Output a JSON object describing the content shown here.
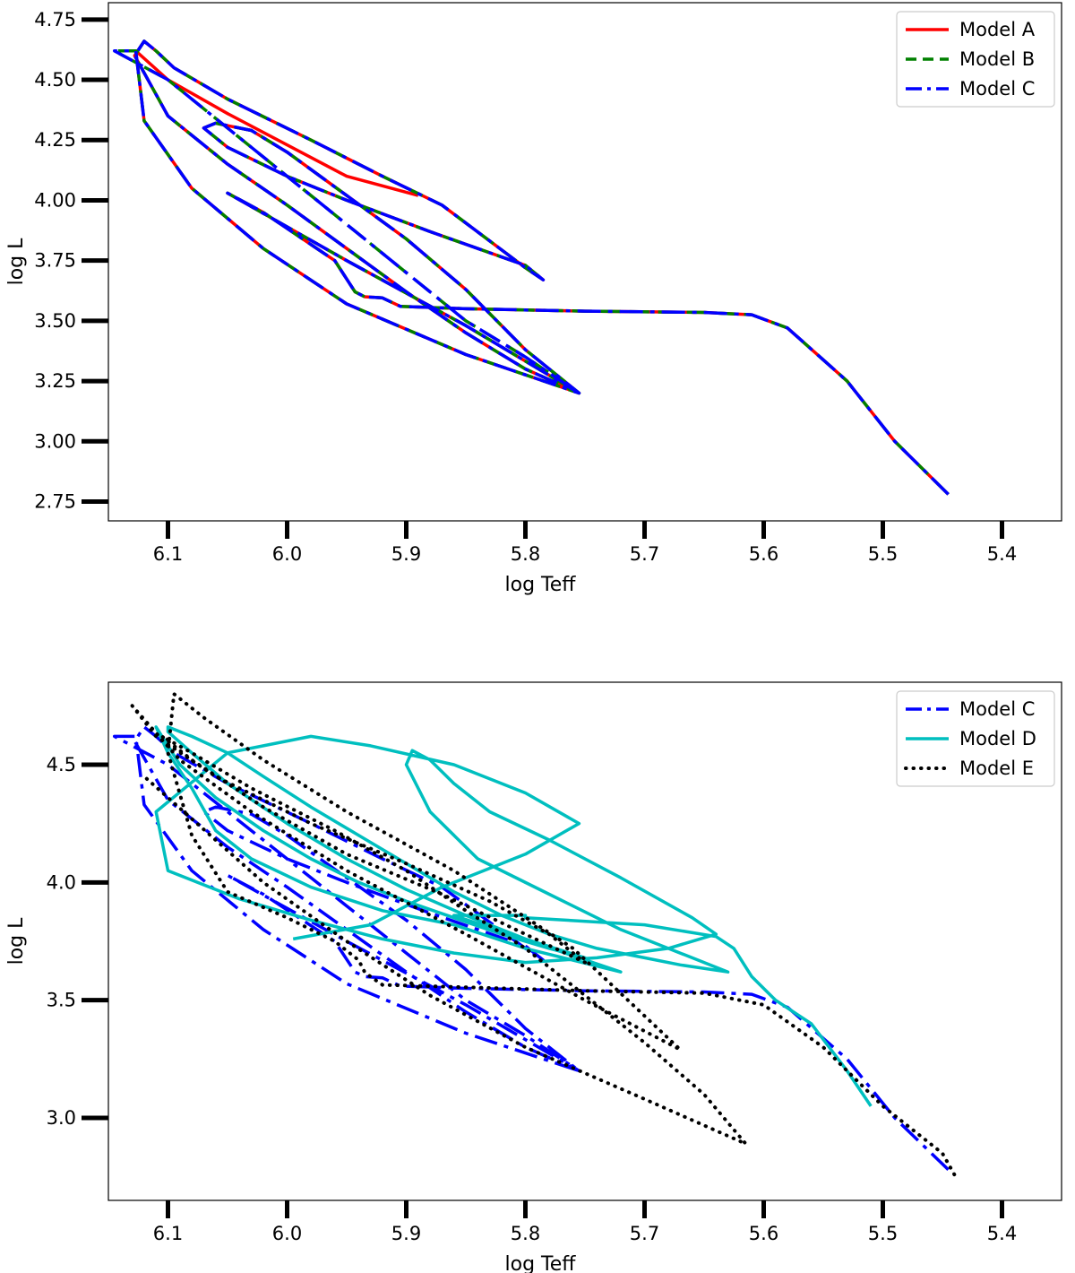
{
  "colors": {
    "Model A": "#ff0000",
    "Model B": "#008000",
    "Model C": "#0000ff",
    "Model D": "#00bfbf",
    "Model E": "#000000",
    "axes": "#000000",
    "legend_border": "#cccccc"
  },
  "chart_data": [
    {
      "type": "line",
      "title": "",
      "xlabel": "log Teff",
      "ylabel": "log L",
      "xlim": [
        6.15,
        5.35
      ],
      "ylim": [
        2.67,
        4.82
      ],
      "x_inverted": true,
      "grid": false,
      "legend_position": "top-right",
      "xticks": [
        6.1,
        6.0,
        5.9,
        5.8,
        5.7,
        5.6,
        5.5,
        5.4
      ],
      "xtick_labels": [
        "6.1",
        "6.0",
        "5.9",
        "5.8",
        "5.7",
        "5.6",
        "5.5",
        "5.4"
      ],
      "yticks": [
        2.75,
        3.0,
        3.25,
        3.5,
        3.75,
        4.0,
        4.25,
        4.5,
        4.75
      ],
      "ytick_labels": [
        "2.75",
        "3.00",
        "3.25",
        "3.50",
        "3.75",
        "4.00",
        "4.25",
        "4.50",
        "4.75"
      ],
      "legend": [
        "Model A",
        "Model B",
        "Model C"
      ],
      "series": [
        {
          "name": "Model A",
          "style": "solid",
          "x": [
            5.445,
            5.49,
            5.53,
            5.58,
            5.61,
            5.65,
            5.75,
            5.85,
            5.905,
            5.92,
            5.935,
            5.943,
            5.96,
            6.02,
            6.05,
            5.95,
            5.85,
            5.755,
            5.8,
            5.85,
            5.9,
            5.95,
            6.0,
            6.05,
            6.1,
            6.128,
            6.12,
            6.11,
            6.095,
            6.05,
            5.98,
            5.92,
            5.87,
            5.8,
            5.785,
            5.8,
            5.88,
            5.95,
            6.0,
            6.05,
            6.07,
            6.06,
            6.03,
            6.0,
            5.95,
            5.9,
            5.85,
            5.8,
            5.755,
            5.85,
            5.95,
            6.02,
            6.08,
            6.12,
            6.127,
            6.1,
            6.05,
            5.95,
            5.89
          ],
          "y": [
            2.78,
            3.0,
            3.25,
            3.47,
            3.525,
            3.535,
            3.54,
            3.55,
            3.56,
            3.595,
            3.6,
            3.62,
            3.75,
            3.95,
            4.03,
            3.75,
            3.48,
            3.2,
            3.3,
            3.45,
            3.62,
            3.8,
            3.98,
            4.15,
            4.35,
            4.6,
            4.66,
            4.62,
            4.55,
            4.42,
            4.25,
            4.1,
            3.98,
            3.72,
            3.67,
            3.73,
            3.87,
            4.0,
            4.1,
            4.22,
            4.3,
            4.32,
            4.29,
            4.2,
            4.02,
            3.84,
            3.63,
            3.38,
            3.2,
            3.36,
            3.57,
            3.8,
            4.05,
            4.33,
            4.62,
            4.5,
            4.36,
            4.1,
            4.02
          ]
        },
        {
          "name": "Model B",
          "style": "dashed",
          "x": [
            5.445,
            5.49,
            5.53,
            5.58,
            5.61,
            5.65,
            5.75,
            5.85,
            5.905,
            5.92,
            5.935,
            5.943,
            5.96,
            6.02,
            6.05,
            5.95,
            5.85,
            5.755,
            5.8,
            5.85,
            5.9,
            5.95,
            6.0,
            6.05,
            6.1,
            6.128,
            6.12,
            6.11,
            6.095,
            6.05,
            5.98,
            5.92,
            5.87,
            5.8,
            5.785,
            5.8,
            5.88,
            5.95,
            6.0,
            6.05,
            6.07,
            6.06,
            6.03,
            6.0,
            5.95,
            5.9,
            5.85,
            5.8,
            5.755,
            5.85,
            5.95,
            6.02,
            6.08,
            6.12,
            6.127,
            6.145,
            6.1,
            6.05,
            6.0,
            5.95,
            5.9,
            5.85,
            5.8,
            5.755
          ],
          "y": [
            2.78,
            3.0,
            3.25,
            3.47,
            3.525,
            3.535,
            3.54,
            3.55,
            3.56,
            3.595,
            3.6,
            3.62,
            3.75,
            3.95,
            4.03,
            3.75,
            3.48,
            3.2,
            3.3,
            3.45,
            3.62,
            3.8,
            3.98,
            4.15,
            4.35,
            4.6,
            4.66,
            4.62,
            4.55,
            4.42,
            4.25,
            4.1,
            3.98,
            3.72,
            3.67,
            3.73,
            3.87,
            4.0,
            4.1,
            4.22,
            4.3,
            4.32,
            4.29,
            4.2,
            4.02,
            3.84,
            3.63,
            3.38,
            3.2,
            3.36,
            3.57,
            3.8,
            4.05,
            4.33,
            4.62,
            4.62,
            4.5,
            4.3,
            4.1,
            3.9,
            3.7,
            3.5,
            3.35,
            3.2
          ]
        },
        {
          "name": "Model C",
          "style": "dashdot",
          "x": [
            5.445,
            5.49,
            5.53,
            5.58,
            5.61,
            5.65,
            5.75,
            5.85,
            5.905,
            5.92,
            5.935,
            5.943,
            5.96,
            6.02,
            6.05,
            5.95,
            5.85,
            5.755,
            5.8,
            5.85,
            5.9,
            5.95,
            6.0,
            6.05,
            6.1,
            6.128,
            6.12,
            6.11,
            6.095,
            6.05,
            5.98,
            5.92,
            5.87,
            5.8,
            5.785,
            5.8,
            5.88,
            5.95,
            6.0,
            6.05,
            6.07,
            6.06,
            6.03,
            6.0,
            5.95,
            5.9,
            5.85,
            5.8,
            5.755,
            5.85,
            5.95,
            6.02,
            6.08,
            6.12,
            6.127,
            6.145,
            6.1,
            6.05,
            6.0,
            5.95,
            5.9,
            5.85,
            5.8,
            5.755
          ],
          "y": [
            2.78,
            3.0,
            3.25,
            3.47,
            3.525,
            3.535,
            3.54,
            3.55,
            3.56,
            3.595,
            3.6,
            3.62,
            3.75,
            3.95,
            4.03,
            3.75,
            3.48,
            3.2,
            3.3,
            3.45,
            3.62,
            3.8,
            3.98,
            4.15,
            4.35,
            4.6,
            4.66,
            4.62,
            4.55,
            4.42,
            4.25,
            4.1,
            3.98,
            3.72,
            3.67,
            3.73,
            3.87,
            4.0,
            4.1,
            4.22,
            4.3,
            4.32,
            4.29,
            4.2,
            4.02,
            3.84,
            3.63,
            3.38,
            3.2,
            3.36,
            3.57,
            3.8,
            4.05,
            4.33,
            4.62,
            4.62,
            4.5,
            4.3,
            4.1,
            3.9,
            3.7,
            3.5,
            3.35,
            3.2
          ]
        }
      ]
    },
    {
      "type": "line",
      "title": "",
      "xlabel": "log Teff",
      "ylabel": "log L",
      "xlim": [
        6.15,
        5.35
      ],
      "ylim": [
        2.65,
        4.85
      ],
      "x_inverted": true,
      "grid": false,
      "legend_position": "top-right",
      "xticks": [
        6.1,
        6.0,
        5.9,
        5.8,
        5.7,
        5.6,
        5.5,
        5.4
      ],
      "xtick_labels": [
        "6.1",
        "6.0",
        "5.9",
        "5.8",
        "5.7",
        "5.6",
        "5.5",
        "5.4"
      ],
      "yticks": [
        3.0,
        3.5,
        4.0,
        4.5
      ],
      "ytick_labels": [
        "3.0",
        "3.5",
        "4.0",
        "4.5"
      ],
      "legend": [
        "Model C",
        "Model D",
        "Model E"
      ],
      "series": [
        {
          "name": "Model C",
          "style": "dashdot",
          "x": [
            5.445,
            5.49,
            5.53,
            5.58,
            5.61,
            5.65,
            5.75,
            5.85,
            5.905,
            5.92,
            5.935,
            5.943,
            5.96,
            6.02,
            6.05,
            5.95,
            5.85,
            5.755,
            5.8,
            5.85,
            5.9,
            5.95,
            6.0,
            6.05,
            6.1,
            6.128,
            6.12,
            6.11,
            6.095,
            6.05,
            5.98,
            5.92,
            5.87,
            5.8,
            5.785,
            5.8,
            5.88,
            5.95,
            6.0,
            6.05,
            6.07,
            6.06,
            6.03,
            6.0,
            5.95,
            5.9,
            5.85,
            5.8,
            5.755,
            5.85,
            5.95,
            6.02,
            6.08,
            6.12,
            6.127,
            6.145,
            6.1,
            6.05,
            6.0,
            5.95,
            5.9,
            5.85,
            5.8,
            5.755
          ],
          "y": [
            2.78,
            3.0,
            3.25,
            3.47,
            3.525,
            3.535,
            3.54,
            3.55,
            3.56,
            3.595,
            3.6,
            3.62,
            3.75,
            3.95,
            4.03,
            3.75,
            3.48,
            3.2,
            3.3,
            3.45,
            3.62,
            3.8,
            3.98,
            4.15,
            4.35,
            4.6,
            4.66,
            4.62,
            4.55,
            4.42,
            4.25,
            4.1,
            3.98,
            3.72,
            3.67,
            3.73,
            3.87,
            4.0,
            4.1,
            4.22,
            4.3,
            4.32,
            4.29,
            4.2,
            4.02,
            3.84,
            3.63,
            3.38,
            3.2,
            3.36,
            3.57,
            3.8,
            4.05,
            4.33,
            4.62,
            4.62,
            4.5,
            4.3,
            4.1,
            3.9,
            3.7,
            3.5,
            3.35,
            3.2
          ]
        },
        {
          "name": "Model D",
          "style": "solid",
          "x": [
            5.51,
            5.53,
            5.56,
            5.59,
            5.61,
            5.62,
            5.625,
            5.64,
            5.7,
            5.8,
            5.8,
            5.86,
            5.72,
            5.8,
            5.86,
            5.92,
            5.98,
            6.03,
            6.06,
            6.08,
            6.1,
            6.11,
            6.105,
            6.09,
            6.06,
            6.02,
            5.98,
            5.94,
            5.9,
            5.86,
            5.82,
            5.78,
            5.75,
            5.8,
            5.85,
            5.9,
            5.95,
            6.0,
            6.05,
            6.08,
            6.1,
            6.1,
            6.08,
            6.05,
            6.02,
            5.98,
            5.94,
            5.9,
            5.86,
            5.82,
            5.78,
            5.74,
            5.7,
            5.67,
            5.63,
            5.66,
            5.72,
            5.78,
            5.84,
            5.88,
            5.9,
            5.895,
            5.88,
            5.86,
            5.83,
            5.78,
            5.72,
            5.66,
            5.64,
            5.68,
            5.74,
            5.8,
            5.86,
            5.92,
            5.98,
            6.04,
            6.1,
            6.11,
            6.05,
            5.98,
            5.93,
            5.86,
            5.8,
            5.755,
            5.8,
            5.87,
            5.93,
            5.995
          ],
          "y": [
            3.05,
            3.2,
            3.4,
            3.5,
            3.6,
            3.68,
            3.72,
            3.77,
            3.82,
            3.85,
            3.86,
            3.86,
            3.62,
            3.72,
            3.82,
            3.88,
            3.98,
            4.1,
            4.22,
            4.4,
            4.55,
            4.66,
            4.62,
            4.5,
            4.36,
            4.22,
            4.1,
            4.0,
            3.92,
            3.85,
            3.78,
            3.72,
            3.68,
            3.76,
            3.86,
            3.97,
            4.1,
            4.25,
            4.42,
            4.55,
            4.64,
            4.66,
            4.62,
            4.55,
            4.45,
            4.32,
            4.2,
            4.08,
            3.96,
            3.86,
            3.78,
            3.72,
            3.68,
            3.65,
            3.62,
            3.68,
            3.8,
            3.95,
            4.1,
            4.3,
            4.5,
            4.56,
            4.52,
            4.42,
            4.3,
            4.18,
            4.02,
            3.85,
            3.78,
            3.72,
            3.68,
            3.66,
            3.7,
            3.76,
            3.84,
            3.93,
            4.05,
            4.3,
            4.55,
            4.62,
            4.58,
            4.5,
            4.38,
            4.25,
            4.12,
            3.98,
            3.82,
            3.76
          ]
        },
        {
          "name": "Model E",
          "style": "dotted",
          "x": [
            5.44,
            5.45,
            5.5,
            5.55,
            5.6,
            5.65,
            5.75,
            5.85,
            5.92,
            5.93,
            5.935,
            5.94,
            5.96,
            6.0,
            6.05,
            6.08,
            6.1,
            6.095,
            6.07,
            6.02,
            5.95,
            5.86,
            5.76,
            5.67,
            5.75,
            5.85,
            5.95,
            6.03,
            6.09,
            6.13,
            6.11,
            6.06,
            5.98,
            5.9,
            5.83,
            5.78,
            5.75,
            5.8,
            5.87,
            5.95,
            6.02,
            6.08,
            6.105,
            6.08,
            6.03,
            5.96,
            5.9,
            5.85,
            5.8,
            5.75,
            5.7,
            5.65,
            5.615,
            5.7,
            5.8,
            5.88,
            5.95,
            6.02,
            6.12
          ],
          "y": [
            2.76,
            2.85,
            3.05,
            3.3,
            3.48,
            3.53,
            3.54,
            3.555,
            3.565,
            3.6,
            3.62,
            3.67,
            3.75,
            3.85,
            3.96,
            4.2,
            4.55,
            4.8,
            4.7,
            4.52,
            4.3,
            4.05,
            3.72,
            3.29,
            3.5,
            3.78,
            4.05,
            4.3,
            4.52,
            4.75,
            4.62,
            4.45,
            4.25,
            4.08,
            3.92,
            3.78,
            3.66,
            3.78,
            3.95,
            4.12,
            4.32,
            4.52,
            4.62,
            4.55,
            4.4,
            4.22,
            4.05,
            3.88,
            3.72,
            3.52,
            3.32,
            3.1,
            2.89,
            3.08,
            3.3,
            3.52,
            3.75,
            4.0,
            4.45
          ]
        }
      ]
    }
  ]
}
